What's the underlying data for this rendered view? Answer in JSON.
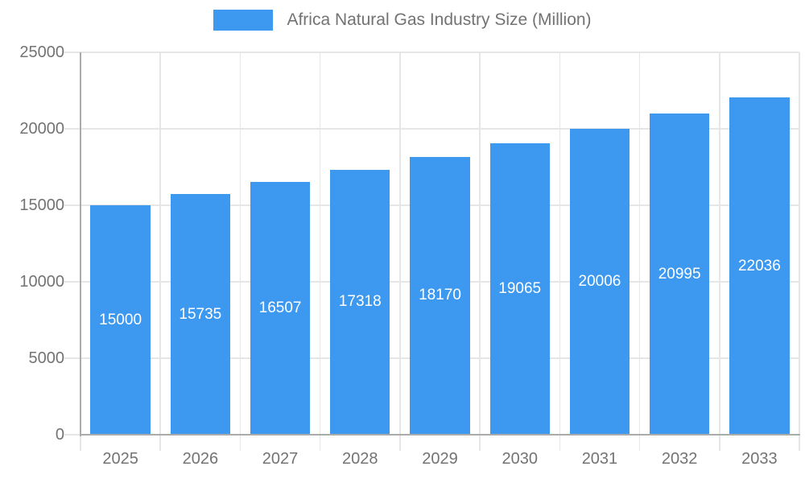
{
  "legend": {
    "label": "Africa Natural Gas Industry Size (Million)"
  },
  "chart_data": {
    "type": "bar",
    "title": "Africa Natural Gas Industry Size (Million)",
    "categories": [
      "2025",
      "2026",
      "2027",
      "2028",
      "2029",
      "2030",
      "2031",
      "2032",
      "2033"
    ],
    "values": [
      15000,
      15735,
      16507,
      17318,
      18170,
      19065,
      20006,
      20995,
      22036
    ],
    "series_name": "Africa Natural Gas Industry Size (Million)",
    "xlabel": "",
    "ylabel": "",
    "ylim": [
      0,
      25000
    ],
    "yticks": [
      0,
      5000,
      10000,
      15000,
      20000,
      25000
    ],
    "grid": true,
    "legend_position": "top-center",
    "value_labels": "inside-center-white",
    "colors": {
      "bar": "#3D99F0",
      "grid": "#E6E6E6",
      "axis": "#ABABAB",
      "text": "#737373",
      "value_label": "#FFFFFF",
      "background": "#FFFFFF"
    }
  }
}
